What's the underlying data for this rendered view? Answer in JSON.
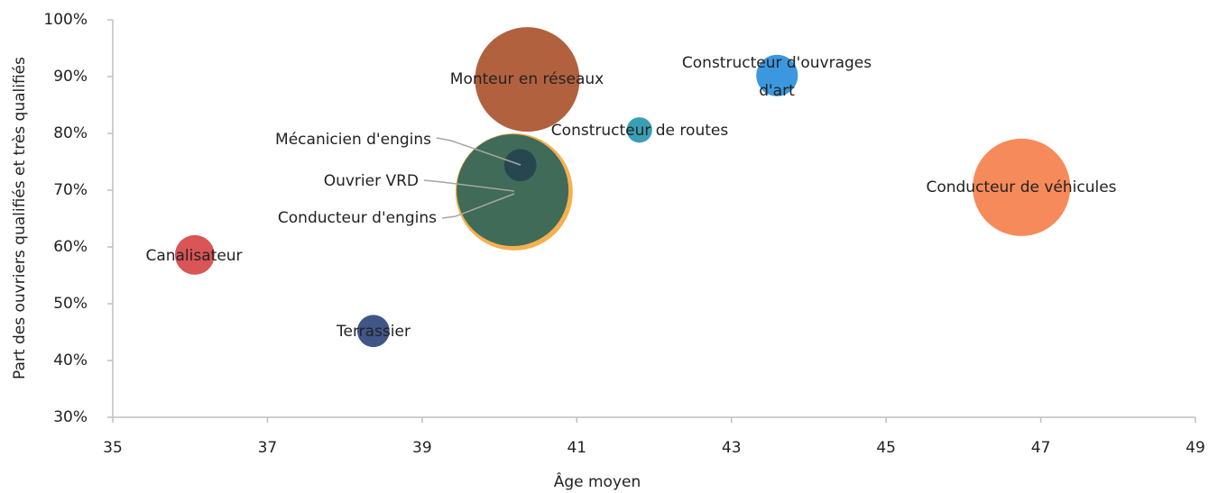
{
  "chart_data": {
    "type": "bubble",
    "xlabel": "Âge moyen",
    "ylabel": "Part des ouvriers qualifiés et très qualifiés",
    "xlim": [
      35,
      49
    ],
    "xticks": [
      35,
      37,
      39,
      41,
      43,
      45,
      47,
      49
    ],
    "ylim": [
      30,
      100
    ],
    "yticks": [
      {
        "value": 30,
        "label": "30%"
      },
      {
        "value": 40,
        "label": "40%"
      },
      {
        "value": 50,
        "label": "50%"
      },
      {
        "value": 60,
        "label": "60%"
      },
      {
        "value": 70,
        "label": "70%"
      },
      {
        "value": 80,
        "label": "80%"
      },
      {
        "value": 90,
        "label": "90%"
      },
      {
        "value": 100,
        "label": "100%"
      }
    ],
    "series": [
      {
        "name": "Canalisateur",
        "color": "#d95556",
        "x": [
          36.06
        ],
        "values": [
          58.6
        ],
        "sizes": [
          48
        ]
      },
      {
        "name": "Terrassier",
        "color": "#3f5686",
        "x": [
          38.37
        ],
        "values": [
          45.2
        ],
        "sizes": [
          32
        ]
      },
      {
        "name": "Mécanicien d'engins",
        "color": "#26474f",
        "x": [
          40.27
        ],
        "values": [
          74.4
        ],
        "sizes": [
          32
        ]
      },
      {
        "name": "Ouvrier VRD",
        "color": "#3f6b58",
        "x": [
          40.17
        ],
        "values": [
          70.0
        ],
        "sizes": [
          384
        ]
      },
      {
        "name": "Conducteur d'engins",
        "color": "#f6b04f",
        "x": [
          40.19
        ],
        "values": [
          69.7
        ],
        "sizes": [
          422
        ]
      },
      {
        "name": "Monteur en réseaux",
        "color": "#b2613f",
        "x": [
          40.36
        ],
        "values": [
          89.5
        ],
        "sizes": [
          336
        ]
      },
      {
        "name": "Constructeur de routes",
        "color": "#3a9fb3",
        "x": [
          41.81
        ],
        "values": [
          80.6
        ],
        "sizes": [
          20
        ]
      },
      {
        "name": "Constructeur d'ouvrages d'art",
        "color": "#3b98df",
        "x": [
          43.59
        ],
        "values": [
          90.2
        ],
        "sizes": [
          53
        ]
      },
      {
        "name": "Conducteur de véhicules",
        "color": "#f78a5a",
        "x": [
          46.75
        ],
        "values": [
          70.5
        ],
        "sizes": [
          292
        ]
      }
    ]
  }
}
